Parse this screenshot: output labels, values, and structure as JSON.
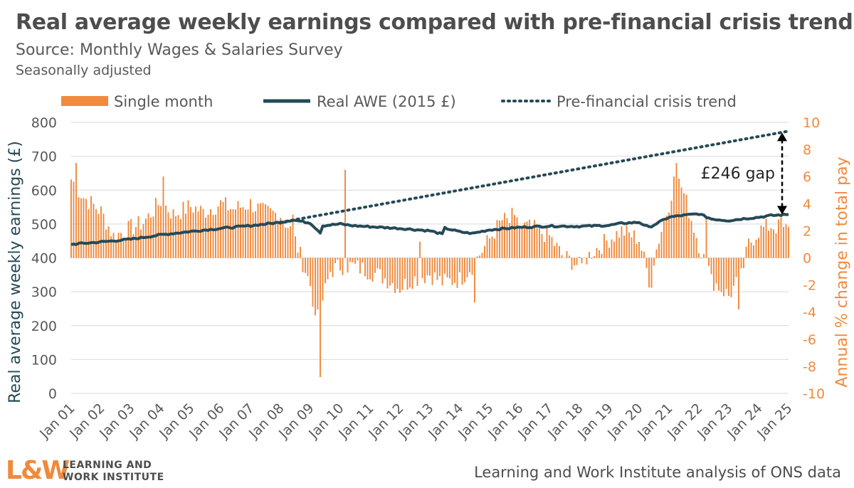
{
  "header": {
    "title": "Real average weekly earnings compared with pre-financial crisis trend",
    "subtitle": "Source: Monthly Wages & Salaries Survey",
    "note": "Seasonally adjusted"
  },
  "footer": {
    "logo_mark": "L&W",
    "logo_line1": "LEARNING AND",
    "logo_line2": "WORK INSTITUTE",
    "credit": "Learning and Work Institute analysis of ONS data"
  },
  "colors": {
    "bars": "#f08a3e",
    "line": "#254a57",
    "trend": "#254a57",
    "grid": "#d9d9d9",
    "axis_text": "#595959"
  },
  "chart_data": {
    "type": "bar+line",
    "legend": {
      "placement": "top",
      "entries": [
        "Single month",
        "Real AWE (2015 £)",
        "Pre-financial crisis trend"
      ]
    },
    "x_tick_labels": [
      "Jan 01",
      "Jan 02",
      "Jan 03",
      "Jan 04",
      "Jan 05",
      "Jan 06",
      "Jan 07",
      "Jan 08",
      "Jan 09",
      "Jan 10",
      "Jan 11",
      "Jan 12",
      "Jan 13",
      "Jan 14",
      "Jan 15",
      "Jan 16",
      "Jan 17",
      "Jan 18",
      "Jan 19",
      "Jan 20",
      "Jan 21",
      "Jan 22",
      "Jan 23",
      "Jan 24",
      "Jan 25"
    ],
    "x_range": [
      "2001-01",
      "2025-01"
    ],
    "y_left": {
      "label": "Real average weekly earnings (£)",
      "range": [
        0,
        800
      ],
      "ticks": [
        0,
        100,
        200,
        300,
        400,
        500,
        600,
        700,
        800
      ]
    },
    "y_right": {
      "label": "Annual % change in total pay",
      "range": [
        -10,
        10
      ],
      "ticks": [
        -10,
        -8,
        -6,
        -4,
        -2,
        0,
        2,
        4,
        6,
        8,
        10
      ]
    },
    "grid": "horizontal",
    "annotation": {
      "text": "£246 gap",
      "from": 528,
      "to": 774,
      "date": "2024-11"
    },
    "series": [
      {
        "name": "Single month",
        "axis": "right",
        "type": "bar",
        "anchors": [
          [
            "2001-01",
            5.8
          ],
          [
            "2001-06",
            4.5
          ],
          [
            "2002-01",
            3.4
          ],
          [
            "2002-06",
            1.6
          ],
          [
            "2003-01",
            2.2
          ],
          [
            "2003-06",
            2.6
          ],
          [
            "2004-01",
            4.2
          ],
          [
            "2004-06",
            3.2
          ],
          [
            "2005-01",
            3.8
          ],
          [
            "2005-06",
            3.4
          ],
          [
            "2006-01",
            4.0
          ],
          [
            "2006-06",
            3.6
          ],
          [
            "2007-01",
            4.0
          ],
          [
            "2007-06",
            3.4
          ],
          [
            "2008-01",
            3.2
          ],
          [
            "2008-06",
            1.8
          ],
          [
            "2009-01",
            -2.0
          ],
          [
            "2009-04",
            -4.5
          ],
          [
            "2009-09",
            -1.0
          ],
          [
            "2010-01",
            -0.6
          ],
          [
            "2010-06",
            -0.6
          ],
          [
            "2011-01",
            -1.0
          ],
          [
            "2011-06",
            -1.4
          ],
          [
            "2012-01",
            -2.2
          ],
          [
            "2012-06",
            -1.6
          ],
          [
            "2013-01",
            -1.2
          ],
          [
            "2013-06",
            -1.8
          ],
          [
            "2014-01",
            -1.6
          ],
          [
            "2014-06",
            -0.6
          ],
          [
            "2015-01",
            1.4
          ],
          [
            "2015-06",
            2.8
          ],
          [
            "2016-01",
            2.4
          ],
          [
            "2016-06",
            2.2
          ],
          [
            "2017-01",
            1.6
          ],
          [
            "2017-06",
            0.2
          ],
          [
            "2018-01",
            -0.6
          ],
          [
            "2018-06",
            0.4
          ],
          [
            "2019-01",
            1.4
          ],
          [
            "2019-06",
            2.0
          ],
          [
            "2020-01",
            1.4
          ],
          [
            "2020-05",
            -1.6
          ],
          [
            "2020-09",
            1.4
          ],
          [
            "2021-01",
            4.0
          ],
          [
            "2021-04",
            6.5
          ],
          [
            "2021-09",
            3.5
          ],
          [
            "2022-01",
            1.0
          ],
          [
            "2022-06",
            -1.6
          ],
          [
            "2023-01",
            -2.8
          ],
          [
            "2023-06",
            -1.4
          ],
          [
            "2023-09",
            1.0
          ],
          [
            "2024-01",
            2.0
          ],
          [
            "2024-06",
            2.4
          ],
          [
            "2025-01",
            2.0
          ]
        ],
        "spikes": [
          [
            "2001-03",
            7.0
          ],
          [
            "2004-02",
            6.0
          ],
          [
            "2008-06",
            3.2
          ],
          [
            "2009-02",
            -3.6
          ],
          [
            "2009-05",
            -8.8
          ],
          [
            "2010-03",
            6.5
          ],
          [
            "2012-09",
            1.2
          ],
          [
            "2014-07",
            -3.3
          ],
          [
            "2015-10",
            3.7
          ],
          [
            "2018-02",
            -0.4
          ],
          [
            "2020-06",
            -2.2
          ],
          [
            "2021-04",
            7.0
          ],
          [
            "2021-06",
            5.2
          ],
          [
            "2022-04",
            3.0
          ],
          [
            "2022-06",
            -1.2
          ],
          [
            "2023-05",
            -3.8
          ],
          [
            "2024-10",
            3.0
          ]
        ]
      },
      {
        "name": "Real AWE (2015 £)",
        "axis": "left",
        "type": "line",
        "points": [
          [
            "2001-01",
            440
          ],
          [
            "2002-01",
            447
          ],
          [
            "2003-01",
            455
          ],
          [
            "2004-01",
            468
          ],
          [
            "2005-01",
            478
          ],
          [
            "2006-01",
            487
          ],
          [
            "2007-01",
            495
          ],
          [
            "2008-01",
            505
          ],
          [
            "2008-06",
            512
          ],
          [
            "2009-01",
            503
          ],
          [
            "2009-05",
            475
          ],
          [
            "2009-06",
            495
          ],
          [
            "2010-01",
            500
          ],
          [
            "2010-06",
            495
          ],
          [
            "2011-01",
            492
          ],
          [
            "2012-01",
            487
          ],
          [
            "2013-01",
            480
          ],
          [
            "2013-06",
            470
          ],
          [
            "2013-07",
            488
          ],
          [
            "2014-01",
            477
          ],
          [
            "2014-06",
            472
          ],
          [
            "2015-01",
            483
          ],
          [
            "2016-01",
            490
          ],
          [
            "2017-01",
            494
          ],
          [
            "2018-01",
            493
          ],
          [
            "2019-01",
            496
          ],
          [
            "2019-06",
            502
          ],
          [
            "2020-01",
            505
          ],
          [
            "2020-05",
            490
          ],
          [
            "2020-09",
            505
          ],
          [
            "2021-01",
            520
          ],
          [
            "2021-06",
            525
          ],
          [
            "2022-01",
            530
          ],
          [
            "2022-06",
            515
          ],
          [
            "2023-01",
            510
          ],
          [
            "2023-06",
            515
          ],
          [
            "2024-01",
            520
          ],
          [
            "2024-06",
            525
          ],
          [
            "2025-01",
            528
          ]
        ]
      },
      {
        "name": "Pre-financial crisis trend",
        "axis": "left",
        "type": "line",
        "style": "dotted",
        "points": [
          [
            "2008-01",
            505
          ],
          [
            "2025-01",
            774
          ]
        ]
      }
    ]
  }
}
